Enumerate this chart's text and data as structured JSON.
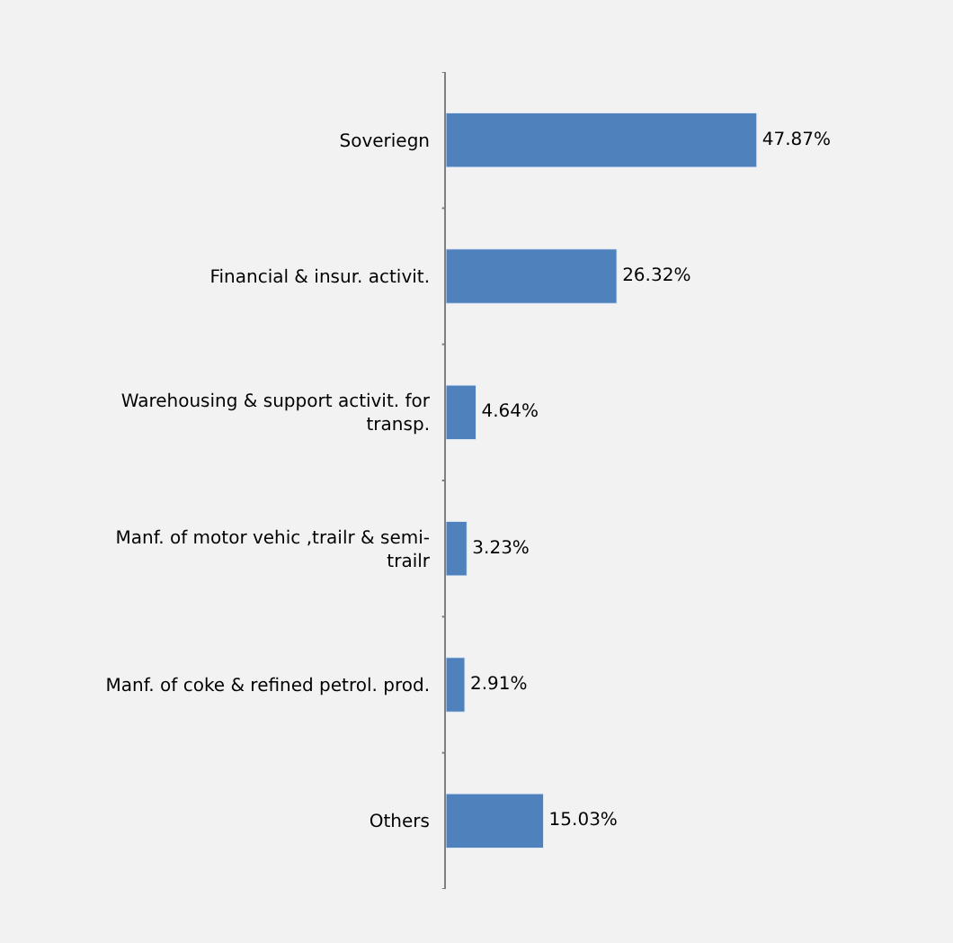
{
  "chart_data": {
    "type": "bar",
    "orientation": "horizontal",
    "categories": [
      "Soveriegn",
      "Financial & insur. activit.",
      "Warehousing & support activit. for\ntransp.",
      "Manf. of motor vehic ,trailr & semi-\ntrailr",
      "Manf. of coke & refined petrol. prod.",
      "Others"
    ],
    "values": [
      47.87,
      26.32,
      4.64,
      3.23,
      2.91,
      15.03
    ],
    "value_labels": [
      "47.87%",
      "26.32%",
      "4.64%",
      "3.23%",
      "2.91%",
      "15.03%"
    ],
    "color": "#4f81bd"
  }
}
